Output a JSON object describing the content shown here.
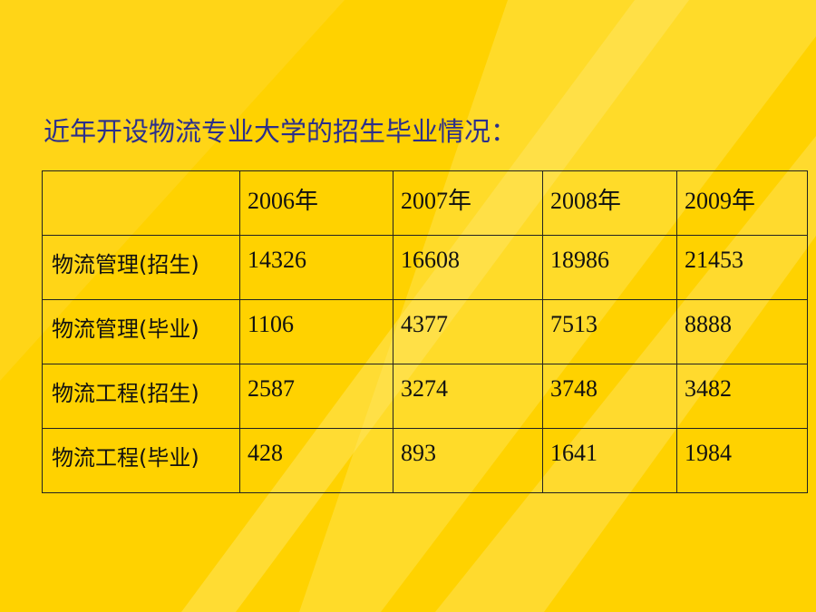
{
  "title": "近年开设物流专业大学的招生毕业情况：",
  "table": {
    "header": [
      "2006年",
      "2007年",
      "2008年",
      "2009年"
    ],
    "rows": [
      {
        "label": "物流管理(招生)",
        "values": [
          14326,
          16608,
          18986,
          21453
        ]
      },
      {
        "label": "物流管理(毕业)",
        "values": [
          1106,
          4377,
          7513,
          8888
        ]
      },
      {
        "label": "物流工程(招生)",
        "values": [
          2587,
          3274,
          3748,
          3482
        ]
      },
      {
        "label": "物流工程(毕业)",
        "values": [
          428,
          893,
          1641,
          1984
        ]
      }
    ]
  }
}
